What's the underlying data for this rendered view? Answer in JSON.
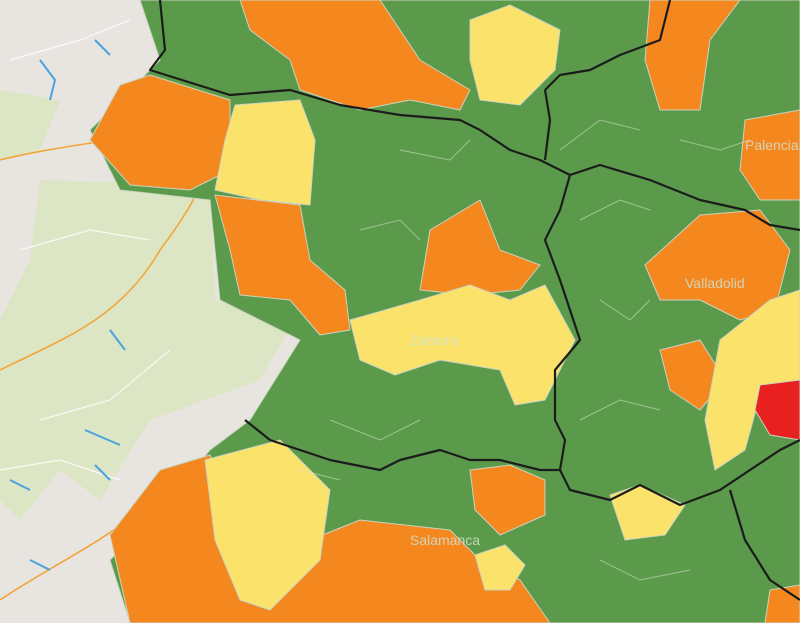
{
  "map": {
    "cities": [
      "Palencia",
      "Valladolid",
      "Zamora",
      "Salamanca"
    ]
  },
  "colors": {
    "background": "#e8e4df",
    "low": "#5b9a4a",
    "medium": "#fbe36b",
    "high": "#f5871f",
    "very_high": "#e82020",
    "boundary": "#1c1c1c"
  }
}
